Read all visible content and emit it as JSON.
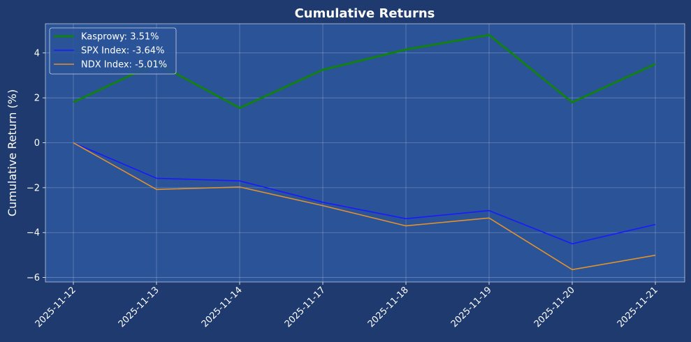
{
  "chart_data": {
    "type": "line",
    "title": "Cumulative Returns",
    "xlabel": "",
    "ylabel": "Cumulative Return (%)",
    "categories": [
      "2025-11-12",
      "2025-11-13",
      "2025-11-14",
      "2025-11-17",
      "2025-11-18",
      "2025-11-19",
      "2025-11-20",
      "2025-11-21"
    ],
    "ylim": [
      -6.2,
      5.3
    ],
    "yticks": [
      -6,
      -4,
      -2,
      0,
      2,
      4
    ],
    "grid": true,
    "legend_position": "top-left",
    "series": [
      {
        "name": "Kasprowy",
        "legend_label": "Kasprowy: 3.51%",
        "color": "#138013",
        "values": [
          1.8,
          3.55,
          1.55,
          3.25,
          4.15,
          4.8,
          1.8,
          3.51
        ]
      },
      {
        "name": "SPX Index",
        "legend_label": "SPX Index: -3.64%",
        "color": "#1a1aff",
        "values": [
          0.0,
          -1.58,
          -1.7,
          -2.65,
          -3.38,
          -3.02,
          -4.5,
          -3.64
        ]
      },
      {
        "name": "NDX Index",
        "legend_label": "NDX Index: -5.01%",
        "color": "#e0922e",
        "values": [
          0.0,
          -2.08,
          -1.97,
          -2.8,
          -3.7,
          -3.35,
          -5.65,
          -5.01
        ]
      }
    ],
    "colors": {
      "page_background": "#1e3a6e",
      "plot_background": "#2a5398",
      "text": "#ffffff"
    }
  }
}
